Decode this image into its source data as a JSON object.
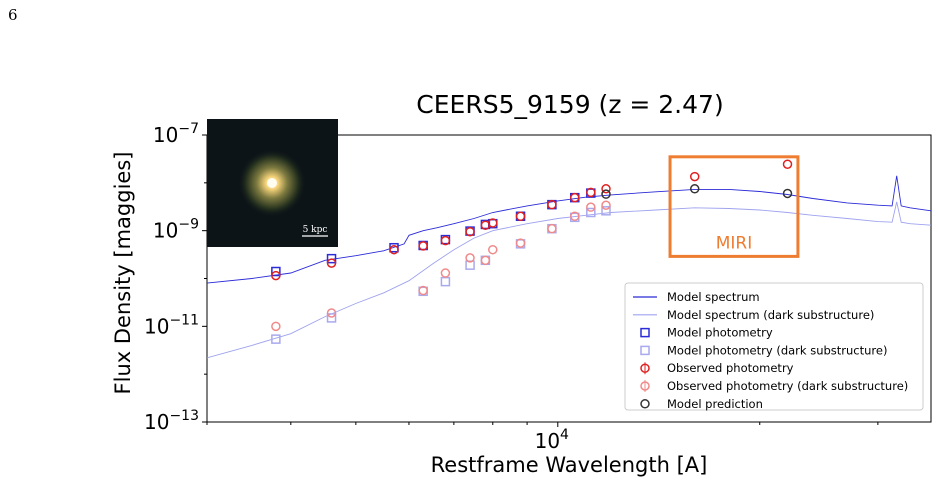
{
  "page": {
    "number": "6"
  },
  "chart_data": {
    "type": "scatter",
    "title": "CEERS5_9159 (z = 2.47)",
    "xlabel": "Restframe Wavelength [A]",
    "ylabel": "Flux Density [maggies]",
    "xscale": "log",
    "yscale": "log",
    "xlim": [
      3000,
      36000
    ],
    "ylim": [
      1e-13,
      1e-07
    ],
    "x_tick_labels": [
      {
        "value": 10000,
        "base": "10",
        "exp": "4"
      }
    ],
    "y_tick_labels": [
      {
        "value": 1e-07,
        "base": "10",
        "exp": "−7"
      },
      {
        "value": 1e-09,
        "base": "10",
        "exp": "−9"
      },
      {
        "value": 1e-11,
        "base": "10",
        "exp": "−11"
      },
      {
        "value": 1e-13,
        "base": "10",
        "exp": "−13"
      }
    ],
    "inset": {
      "scale_label": "5 kpc"
    },
    "annotation": {
      "text": "MIRI",
      "x_range": [
        14700,
        22800
      ],
      "y_range": [
        2.9e-10,
        3.5e-08
      ]
    },
    "legend": {
      "position": "lower-right",
      "entries": [
        "Model spectrum",
        "Model spectrum (dark substructure)",
        "Model photometry",
        "Model photometry (dark substructure)",
        "Observed photometry",
        "Observed photometry (dark substructure)",
        "Model prediction"
      ]
    },
    "colors": {
      "model_spectrum": "#2b2bd8",
      "dark_spectrum": "#9fa3ee",
      "model_photometry": "#2b2bd8",
      "dark_photometry": "#a9a9ee",
      "observed": "#e02020",
      "observed_dark": "#f08a8a",
      "prediction": "#333333",
      "miri": "#ee7d31"
    },
    "series": [
      {
        "name": "Model spectrum",
        "kind": "line",
        "x": [
          3000,
          3500,
          4000,
          4500,
          5000,
          5500,
          5900,
          6000,
          6300,
          6600,
          7000,
          7500,
          8000,
          9000,
          10000,
          11000,
          12000,
          14000,
          16000,
          18000,
          20000,
          22000,
          24000,
          27000,
          30000,
          31500,
          32000,
          32500,
          33500,
          36000
        ],
        "y": [
          8e-11,
          1e-10,
          1.3e-10,
          2.4e-10,
          3e-10,
          3.8e-10,
          5.3e-10,
          8e-10,
          1e-09,
          1.15e-09,
          1.4e-09,
          1.8e-09,
          2.4e-09,
          3.3e-09,
          4.2e-09,
          5e-09,
          5.6e-09,
          6.5e-09,
          7.3e-09,
          7.3e-09,
          6.6e-09,
          5.7e-09,
          4.7e-09,
          3.8e-09,
          3.4e-09,
          3.3e-09,
          1.4e-08,
          3.3e-09,
          3e-09,
          2.6e-09
        ]
      },
      {
        "name": "Model spectrum (dark substructure)",
        "kind": "line",
        "x": [
          3000,
          3500,
          4000,
          4500,
          5000,
          5500,
          6000,
          6500,
          7000,
          7500,
          8000,
          9000,
          10000,
          11000,
          12000,
          14000,
          16000,
          18000,
          20000,
          22000,
          24000,
          27000,
          30000,
          31500,
          32000,
          32500,
          33500,
          36000
        ],
        "y": [
          2.2e-12,
          4e-12,
          7e-12,
          1.6e-11,
          3e-11,
          5e-11,
          9e-11,
          2e-10,
          4e-10,
          7e-10,
          1e-09,
          1.4e-09,
          1.8e-09,
          2.1e-09,
          2.4e-09,
          2.7e-09,
          3e-09,
          2.9e-09,
          2.7e-09,
          2.4e-09,
          2.1e-09,
          1.8e-09,
          1.55e-09,
          1.5e-09,
          4e-09,
          1.5e-09,
          1.4e-09,
          1.3e-09
        ]
      },
      {
        "name": "Model photometry",
        "kind": "square",
        "x": [
          3800,
          4600,
          5700,
          6300,
          6800,
          7400,
          7800,
          8000,
          8800,
          9800,
          10600,
          11200
        ],
        "y": [
          1.4e-10,
          2.6e-10,
          4.4e-10,
          4.9e-10,
          6.5e-10,
          9.8e-10,
          1.35e-09,
          1.4e-09,
          2e-09,
          3.5e-09,
          4.9e-09,
          6.1e-09
        ]
      },
      {
        "name": "Model photometry (dark substructure)",
        "kind": "square",
        "x": [
          3800,
          4600,
          6300,
          6800,
          7400,
          7800,
          8800,
          9800,
          10600,
          11200,
          11800
        ],
        "y": [
          5.4e-12,
          1.5e-11,
          5.4e-11,
          8.6e-11,
          1.9e-10,
          2.4e-10,
          5.3e-10,
          1.1e-09,
          1.9e-09,
          2.4e-09,
          2.6e-09
        ]
      },
      {
        "name": "Observed photometry",
        "kind": "circle",
        "x": [
          3800,
          4600,
          5700,
          6300,
          6800,
          7400,
          7800,
          8000,
          8800,
          9800,
          10600,
          11200,
          11800,
          16000,
          22000
        ],
        "y": [
          1.15e-10,
          2.1e-10,
          4e-10,
          4.8e-10,
          6.2e-10,
          9.5e-10,
          1.3e-09,
          1.45e-09,
          2e-09,
          3.5e-09,
          4.9e-09,
          6.3e-09,
          7.5e-09,
          1.35e-08,
          2.45e-08
        ]
      },
      {
        "name": "Observed photometry (dark substructure)",
        "kind": "circle",
        "x": [
          3800,
          4600,
          6300,
          6800,
          7400,
          7800,
          8000,
          8800,
          9800,
          10600,
          11200,
          11800
        ],
        "y": [
          1e-11,
          1.9e-11,
          5.6e-11,
          1.3e-10,
          2.7e-10,
          2.4e-10,
          4e-10,
          5.5e-10,
          1.1e-09,
          2e-09,
          3.1e-09,
          3.4e-09
        ]
      },
      {
        "name": "Model prediction",
        "kind": "circle",
        "x": [
          11800,
          16000,
          22000
        ],
        "y": [
          5.8e-09,
          7.5e-09,
          6e-09
        ]
      }
    ]
  }
}
